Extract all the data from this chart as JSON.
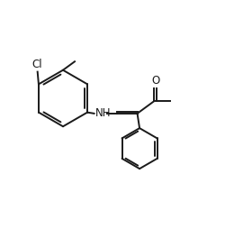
{
  "background": "#ffffff",
  "line_color": "#1a1a1a",
  "line_width": 1.4,
  "font_size": 8.5,
  "figsize": [
    2.5,
    2.54
  ],
  "dpi": 100,
  "xlim": [
    0,
    10
  ],
  "ylim": [
    0,
    10.16
  ]
}
